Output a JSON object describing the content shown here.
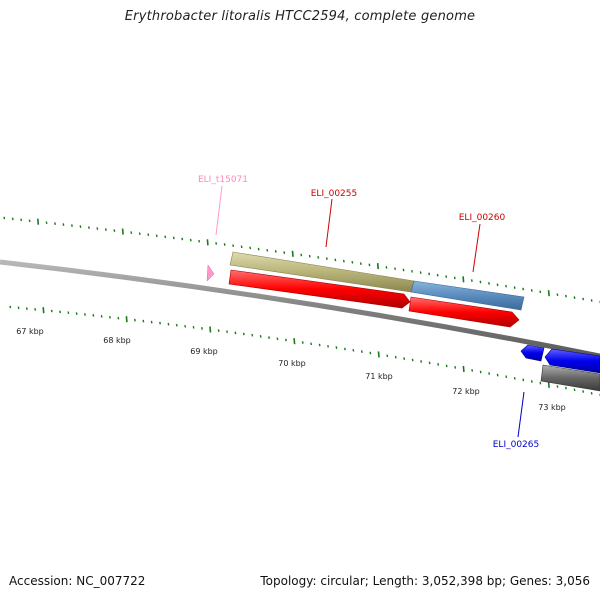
{
  "title": "Erythrobacter litoralis HTCC2594, complete genome",
  "footer": {
    "accession": "Accession: NC_007722",
    "summary": "Topology: circular; Length: 3,052,398 bp; Genes: 3,056"
  },
  "scale_labels": [
    "67 kbp",
    "68 kbp",
    "69 kbp",
    "70 kbp",
    "71 kbp",
    "72 kbp",
    "73 kbp"
  ],
  "feature_labels": [
    {
      "text": "ELI_t15071",
      "color": "#ff88bb"
    },
    {
      "text": "ELI_00255",
      "color": "#cc0000"
    },
    {
      "text": "ELI_00260",
      "color": "#cc0000"
    },
    {
      "text": "ELI_00265",
      "color": "#0000cc"
    }
  ],
  "colors": {
    "backbone": "#808080",
    "tick": "#1a7a1a",
    "cds_red": "#ff0000",
    "cds_olive": "#b8b478",
    "cds_steelblue": "#5a8cbe",
    "cds_blue": "#0000ee",
    "cds_gray": "#666666",
    "trna_pink": "#ff99cc"
  }
}
